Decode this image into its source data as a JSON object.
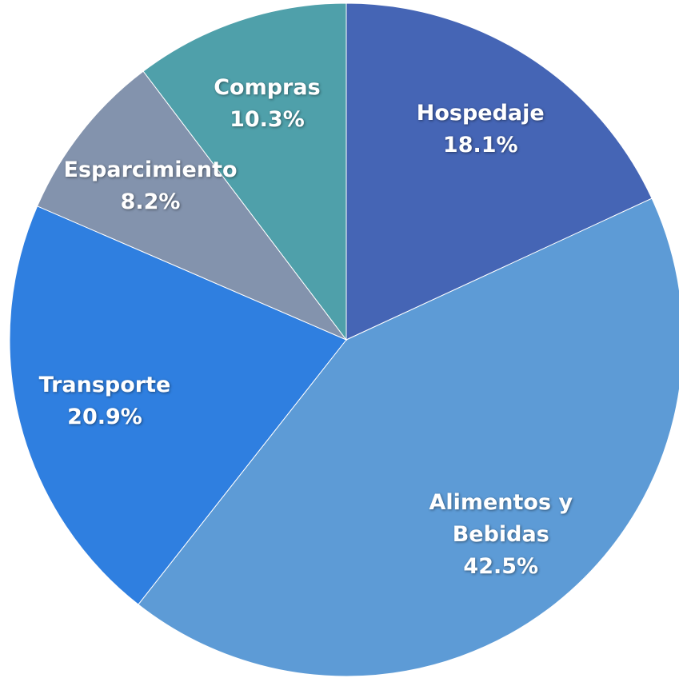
{
  "chart_data": {
    "type": "pie",
    "categories": [
      "Hospedaje",
      "Alimentos y Bebidas",
      "Transporte",
      "Esparcimiento",
      "Compras"
    ],
    "values": [
      18.1,
      42.5,
      20.9,
      8.2,
      10.3
    ],
    "value_labels": [
      "18.1%",
      "42.5%",
      "20.9%",
      "8.2%",
      "10.3%"
    ],
    "colors": [
      "#4565b5",
      "#5d9bd6",
      "#2f7fe0",
      "#8393ad",
      "#4fa0aa"
    ]
  }
}
